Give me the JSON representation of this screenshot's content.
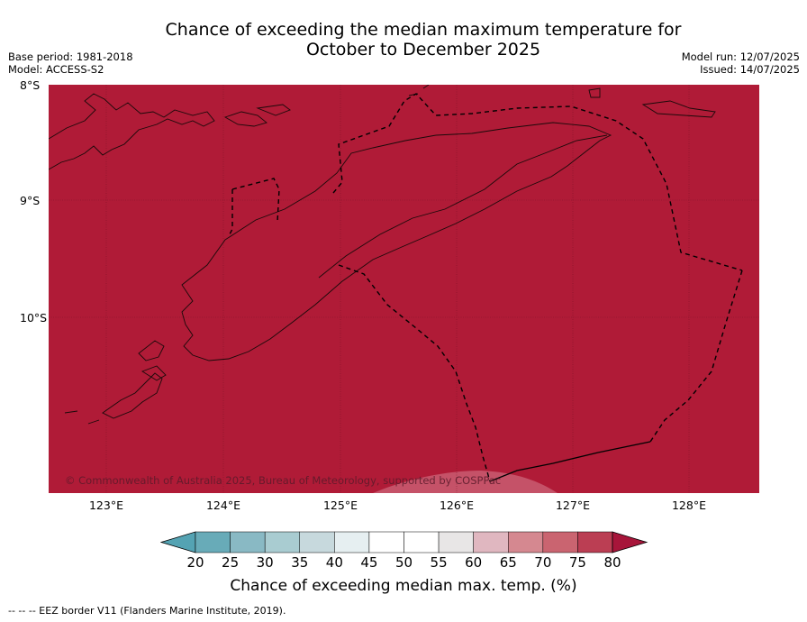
{
  "title_line1": "Chance of exceeding the median maximum temperature for",
  "title_line2": "October to December 2025",
  "meta_left": {
    "base_period": "Base period: 1981-2018",
    "model": "Model: ACCESS-S2"
  },
  "meta_right": {
    "model_run": "Model run: 12/07/2025",
    "issued": "Issued: 14/07/2025"
  },
  "lat_labels": [
    "8°S",
    "9°S",
    "10°S"
  ],
  "lon_labels": [
    "123°E",
    "124°E",
    "125°E",
    "126°E",
    "127°E",
    "128°E"
  ],
  "copyright": "© Commonwealth of Australia 2025, Bureau of Meteorology, supported by COSPPac",
  "colorbar": {
    "labels": [
      "20",
      "25",
      "30",
      "35",
      "40",
      "45",
      "50",
      "55",
      "60",
      "65",
      "70",
      "75",
      "80"
    ],
    "title": "Chance of exceeding median max. temp. (%)",
    "under_color": "#54a3b3",
    "over_color": "#a7153a",
    "colors": [
      "#68abb8",
      "#89b9c4",
      "#a9ccd1",
      "#c7d9dd",
      "#e6eff1",
      "#ffffff",
      "#ffffff",
      "#e8e6e6",
      "#e0b7c0",
      "#d58890",
      "#ca6470",
      "#bb3e53"
    ]
  },
  "map": {
    "fill_color": "#b01b37"
  },
  "footnote": "--  --  -- EEZ border V11 (Flanders Marine Institute, 2019)."
}
